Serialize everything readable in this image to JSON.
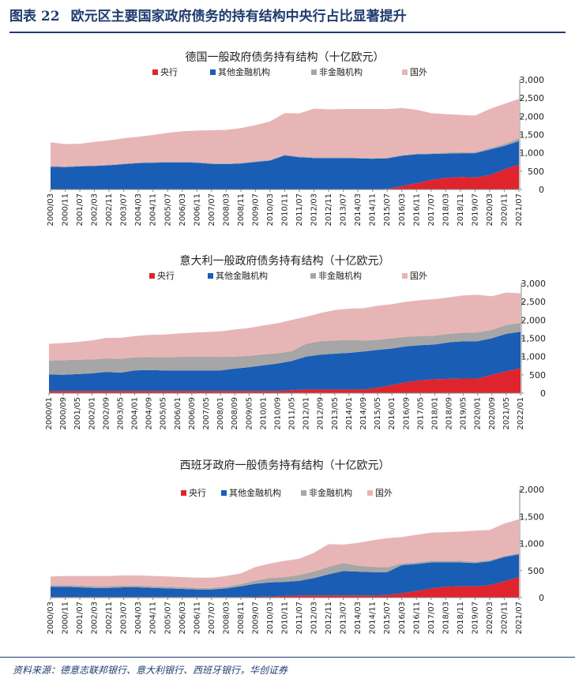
{
  "header": {
    "figure_number": "图表 22",
    "title": "欧元区主要国家政府债务的持有结构中央行占比显著提升"
  },
  "source": "资料来源：德意志联邦银行、意大利银行、西班牙银行，华创证券",
  "colors": {
    "central_bank": "#e0242d",
    "other_financial": "#1a5db5",
    "non_financial": "#a6a6a6",
    "foreign": "#e8b5b6"
  },
  "chart_data": [
    {
      "type": "area",
      "stacked": true,
      "title": "德国一般政府债务持有结构（十亿欧元）",
      "legend": [
        "央行",
        "其他金融机构",
        "非金融机构",
        "国外"
      ],
      "legend_position": "top",
      "ylim": [
        0,
        3000
      ],
      "yticks": [
        "0",
        "500",
        "1,000",
        "1,500",
        "2,000",
        "2,500",
        "3,000"
      ],
      "x_tick_labels": [
        "2000/03",
        "2000/11",
        "2001/07",
        "2002/03",
        "2002/11",
        "2003/07",
        "2004/03",
        "2004/11",
        "2005/07",
        "2006/03",
        "2006/11",
        "2007/07",
        "2008/03",
        "2008/11",
        "2009/07",
        "2010/03",
        "2010/11",
        "2011/07",
        "2012/03",
        "2012/11",
        "2013/07",
        "2014/03",
        "2014/11",
        "2015/07",
        "2016/03",
        "2016/11",
        "2017/07",
        "2018/03",
        "2018/11",
        "2019/07",
        "2020/03",
        "2020/11",
        "2021/07"
      ],
      "series": [
        {
          "name": "央行",
          "values": [
            0,
            0,
            0,
            0,
            0,
            0,
            0,
            0,
            0,
            0,
            0,
            0,
            0,
            0,
            0,
            0,
            0,
            0,
            0,
            0,
            0,
            0,
            0,
            20,
            90,
            170,
            260,
            320,
            340,
            330,
            390,
            550,
            680
          ]
        },
        {
          "name": "其他金融机构",
          "values": [
            620,
            610,
            630,
            640,
            660,
            690,
            720,
            730,
            740,
            740,
            730,
            700,
            690,
            710,
            750,
            790,
            930,
            880,
            860,
            860,
            860,
            850,
            840,
            830,
            830,
            790,
            710,
            660,
            650,
            660,
            700,
            640,
            640
          ]
        },
        {
          "name": "非金融机构",
          "values": [
            20,
            20,
            20,
            20,
            20,
            20,
            20,
            20,
            20,
            20,
            20,
            20,
            20,
            20,
            20,
            20,
            20,
            20,
            20,
            20,
            20,
            20,
            20,
            20,
            20,
            20,
            20,
            30,
            30,
            30,
            40,
            50,
            80
          ]
        },
        {
          "name": "国外",
          "values": [
            650,
            610,
            600,
            640,
            660,
            690,
            700,
            740,
            790,
            830,
            860,
            900,
            920,
            950,
            990,
            1050,
            1140,
            1180,
            1330,
            1310,
            1320,
            1330,
            1340,
            1330,
            1290,
            1200,
            1100,
            1050,
            1020,
            1000,
            1070,
            1100,
            1080
          ]
        }
      ]
    },
    {
      "type": "area",
      "stacked": true,
      "title": "意大利一般政府债务持有结构（十亿欧元）",
      "legend": [
        "央行",
        "其他金融机构",
        "非金融机构",
        "国外"
      ],
      "legend_position": "top",
      "ylim": [
        0,
        3000
      ],
      "yticks": [
        "0",
        "500",
        "1,000",
        "1,500",
        "2,000",
        "2,500",
        "3,000"
      ],
      "x_tick_labels": [
        "2000/01",
        "2000/09",
        "2001/05",
        "2002/01",
        "2002/09",
        "2003/05",
        "2004/01",
        "2004/09",
        "2005/05",
        "2006/01",
        "2006/09",
        "2007/05",
        "2008/01",
        "2008/09",
        "2009/05",
        "2010/01",
        "2010/09",
        "2011/05",
        "2012/01",
        "2012/09",
        "2013/05",
        "2014/01",
        "2014/09",
        "2015/05",
        "2016/01",
        "2016/09",
        "2017/05",
        "2018/01",
        "2018/09",
        "2019/05",
        "2020/01",
        "2020/09",
        "2021/05",
        "2022/01"
      ],
      "series": [
        {
          "name": "央行",
          "values": [
            60,
            60,
            60,
            60,
            60,
            60,
            60,
            60,
            60,
            60,
            60,
            60,
            60,
            60,
            60,
            60,
            60,
            80,
            100,
            100,
            100,
            100,
            100,
            150,
            220,
            300,
            350,
            380,
            390,
            400,
            400,
            500,
            600,
            680
          ]
        },
        {
          "name": "其他金融机构",
          "values": [
            450,
            440,
            460,
            480,
            520,
            500,
            560,
            570,
            560,
            560,
            560,
            560,
            560,
            610,
            650,
            700,
            750,
            800,
            900,
            950,
            980,
            1000,
            1040,
            1030,
            1000,
            980,
            960,
            950,
            1000,
            1020,
            1020,
            1000,
            1020,
            1000
          ]
        },
        {
          "name": "非金融机构",
          "values": [
            380,
            400,
            390,
            380,
            370,
            380,
            360,
            360,
            360,
            370,
            380,
            380,
            370,
            330,
            310,
            300,
            280,
            270,
            350,
            370,
            360,
            350,
            300,
            280,
            280,
            260,
            250,
            240,
            230,
            230,
            240,
            230,
            240,
            240
          ]
        },
        {
          "name": "国外",
          "values": [
            460,
            470,
            490,
            520,
            560,
            570,
            580,
            600,
            620,
            640,
            650,
            670,
            700,
            740,
            760,
            790,
            820,
            850,
            740,
            770,
            830,
            860,
            880,
            930,
            930,
            960,
            980,
            1000,
            1000,
            1020,
            1030,
            920,
            890,
            810
          ]
        }
      ]
    },
    {
      "type": "area",
      "stacked": true,
      "title": "西班牙政府一般债务持有结构（十亿欧元）",
      "legend": [
        "央行",
        "其他金融机构",
        "非金融机构",
        "国外"
      ],
      "legend_position": "top",
      "ylim": [
        0,
        2000
      ],
      "yticks": [
        "0",
        "500",
        "1,000",
        "1,500",
        "2,000"
      ],
      "x_tick_labels": [
        "2000/03",
        "2000/11",
        "2001/07",
        "2002/03",
        "2002/11",
        "2003/07",
        "2004/03",
        "2004/11",
        "2005/07",
        "2006/03",
        "2006/11",
        "2007/07",
        "2008/03",
        "2008/11",
        "2009/07",
        "2010/03",
        "2010/11",
        "2011/07",
        "2012/03",
        "2012/11",
        "2013/07",
        "2014/03",
        "2014/11",
        "2015/07",
        "2016/03",
        "2016/11",
        "2017/07",
        "2018/03",
        "2018/11",
        "2019/07",
        "2020/03",
        "2020/11",
        "2021/07"
      ],
      "series": [
        {
          "name": "央行",
          "values": [
            10,
            10,
            10,
            10,
            10,
            10,
            10,
            10,
            10,
            10,
            10,
            10,
            10,
            10,
            15,
            20,
            30,
            40,
            40,
            40,
            40,
            40,
            40,
            50,
            80,
            120,
            170,
            200,
            210,
            210,
            230,
            300,
            380
          ]
        },
        {
          "name": "其他金融机构",
          "values": [
            190,
            190,
            180,
            170,
            170,
            180,
            180,
            170,
            160,
            150,
            140,
            140,
            160,
            200,
            240,
            260,
            260,
            270,
            320,
            390,
            450,
            440,
            430,
            420,
            520,
            500,
            480,
            450,
            440,
            430,
            440,
            450,
            420
          ]
        },
        {
          "name": "非金融机构",
          "values": [
            30,
            30,
            30,
            30,
            30,
            30,
            30,
            30,
            30,
            30,
            30,
            30,
            30,
            40,
            60,
            80,
            90,
            110,
            120,
            140,
            150,
            110,
            100,
            90,
            30,
            30,
            30,
            30,
            30,
            20,
            20,
            20,
            20
          ]
        },
        {
          "name": "国外",
          "values": [
            160,
            170,
            180,
            190,
            190,
            190,
            190,
            190,
            190,
            190,
            190,
            190,
            200,
            200,
            250,
            270,
            300,
            300,
            350,
            420,
            340,
            420,
            490,
            540,
            490,
            510,
            520,
            530,
            540,
            580,
            560,
            600,
            630
          ]
        }
      ]
    }
  ]
}
